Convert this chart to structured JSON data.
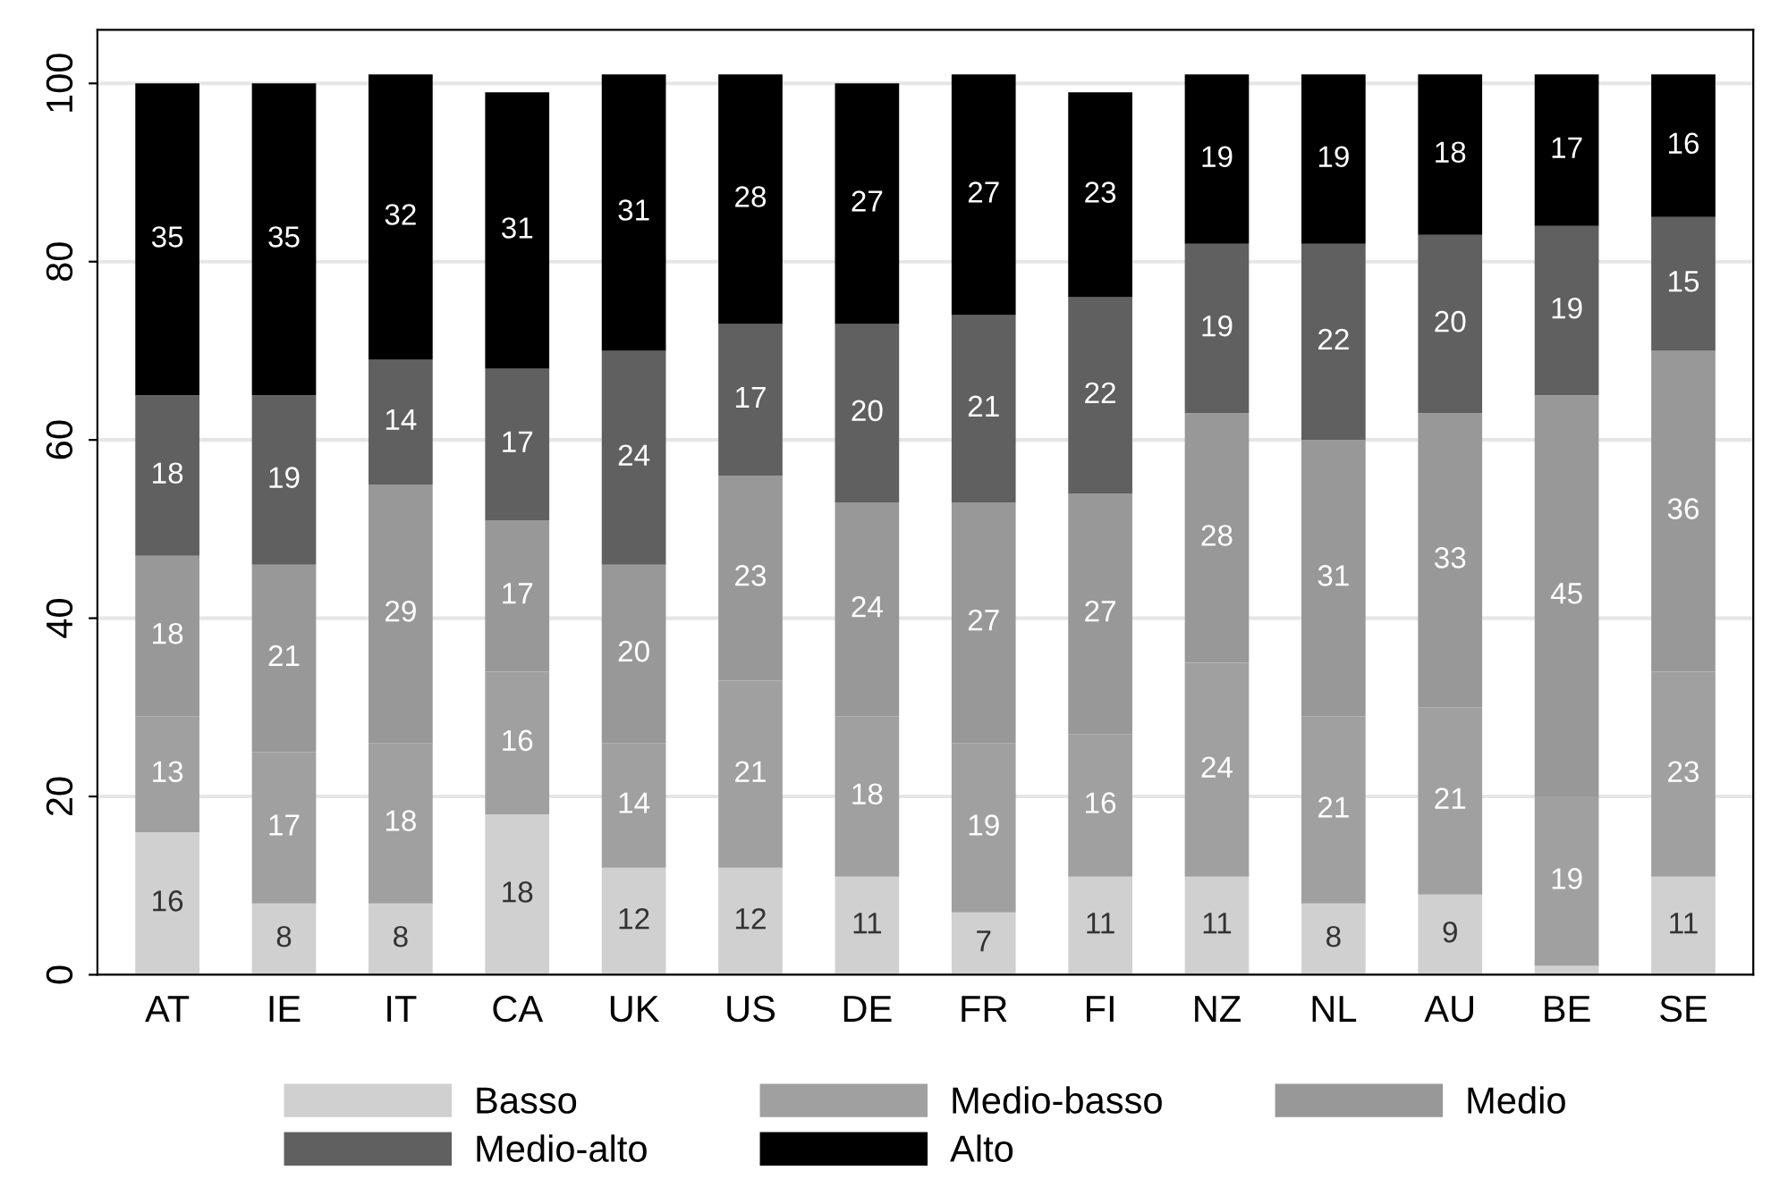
{
  "chart_data": {
    "type": "bar",
    "stacked": true,
    "categories": [
      "AT",
      "IE",
      "IT",
      "CA",
      "UK",
      "US",
      "DE",
      "FR",
      "FI",
      "NZ",
      "NL",
      "AU",
      "BE",
      "SE"
    ],
    "series": [
      {
        "name": "Basso",
        "color": "#d0d0d0",
        "values": [
          16,
          8,
          8,
          18,
          12,
          12,
          11,
          7,
          11,
          11,
          8,
          9,
          1,
          11
        ],
        "value_labels": [
          "16",
          "8",
          "8",
          "18",
          "12",
          "12",
          "11",
          "7",
          "11",
          "11",
          "8",
          "9",
          null,
          "11"
        ]
      },
      {
        "name": "Medio-basso",
        "color": "#a0a0a0",
        "values": [
          13,
          17,
          18,
          16,
          14,
          21,
          18,
          19,
          16,
          24,
          21,
          21,
          19,
          23
        ],
        "value_labels": [
          "13",
          "17",
          "18",
          "16",
          "14",
          "21",
          "18",
          "19",
          "16",
          "24",
          "21",
          "21",
          "19",
          "23"
        ]
      },
      {
        "name": "Medio",
        "color": "#989898",
        "values": [
          18,
          21,
          29,
          17,
          20,
          23,
          24,
          27,
          27,
          28,
          31,
          33,
          45,
          36
        ],
        "value_labels": [
          "18",
          "21",
          "29",
          "17",
          "20",
          "23",
          "24",
          "27",
          "27",
          "28",
          "31",
          "33",
          "45",
          "36"
        ]
      },
      {
        "name": "Medio-alto",
        "color": "#606060",
        "values": [
          18,
          19,
          14,
          17,
          24,
          17,
          20,
          21,
          22,
          19,
          22,
          20,
          19,
          15
        ],
        "value_labels": [
          "18",
          "19",
          "14",
          "17",
          "24",
          "17",
          "20",
          "21",
          "22",
          "19",
          "22",
          "20",
          "19",
          "15"
        ]
      },
      {
        "name": "Alto",
        "color": "#000000",
        "values": [
          35,
          35,
          32,
          31,
          31,
          28,
          27,
          27,
          23,
          19,
          19,
          18,
          17,
          16
        ],
        "value_labels": [
          "35",
          "35",
          "32",
          "31",
          "31",
          "28",
          "27",
          "27",
          "23",
          "19",
          "19",
          "18",
          "17",
          "16"
        ]
      }
    ],
    "ylim": [
      0,
      106
    ],
    "yticks": [
      0,
      20,
      40,
      60,
      80,
      100
    ],
    "grid": "y",
    "legend": "bottom"
  }
}
